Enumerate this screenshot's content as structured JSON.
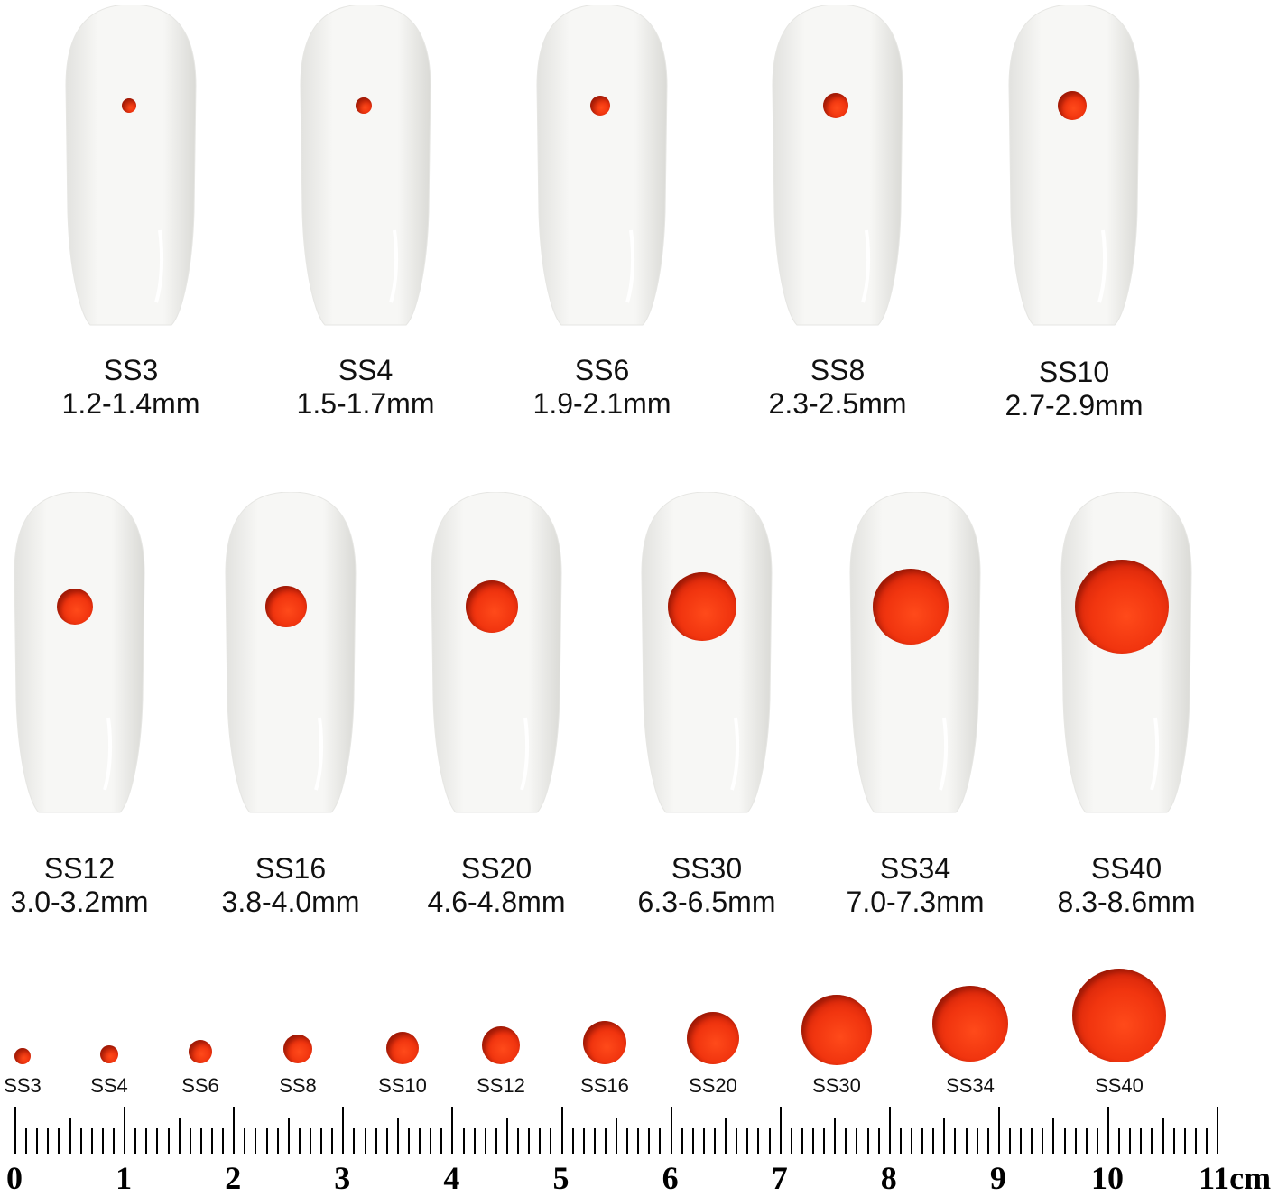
{
  "row1": [
    {
      "size": "SS3",
      "range": "1.2-1.4mm"
    },
    {
      "size": "SS4",
      "range": "1.5-1.7mm"
    },
    {
      "size": "SS6",
      "range": "1.9-2.1mm"
    },
    {
      "size": "SS8",
      "range": "2.3-2.5mm"
    },
    {
      "size": "SS10",
      "range": "2.7-2.9mm"
    }
  ],
  "row2": [
    {
      "size": "SS12",
      "range": "3.0-3.2mm"
    },
    {
      "size": "SS16",
      "range": "3.8-4.0mm"
    },
    {
      "size": "SS20",
      "range": "4.6-4.8mm"
    },
    {
      "size": "SS30",
      "range": "6.3-6.5mm"
    },
    {
      "size": "SS34",
      "range": "7.0-7.3mm"
    },
    {
      "size": "SS40",
      "range": "8.3-8.6mm"
    }
  ],
  "scale_labels": [
    "SS3",
    "SS4",
    "SS6",
    "SS8",
    "SS10",
    "SS12",
    "SS16",
    "SS20",
    "SS30",
    "SS34",
    "SS40"
  ],
  "ruler": {
    "labels": [
      "0",
      "1",
      "2",
      "3",
      "4",
      "5",
      "6",
      "7",
      "8",
      "9",
      "10",
      "11cm"
    ]
  },
  "colors": {
    "gem": "#f1350f",
    "nail": "#f4f4f2"
  }
}
